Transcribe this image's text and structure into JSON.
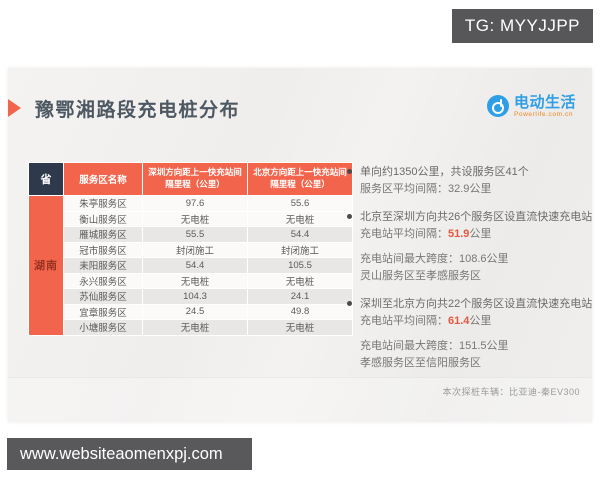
{
  "watermarks": {
    "top_label": "TG: MYYJJPP",
    "bottom_label": "www.websiteaomenxpj.com"
  },
  "header": {
    "title": "豫鄂湘路段充电桩分布"
  },
  "logo": {
    "brand": "电动生活",
    "site": "Powerlife.com.cn"
  },
  "chart_data": {
    "type": "table",
    "title": "豫鄂湘路段充电桩分布",
    "province": "湖南",
    "columns": [
      "省",
      "服务区名称",
      "深圳方向距上一快充站间隔里程（公里）",
      "北京方向距上一快充站间隔里程（公里）"
    ],
    "rows": [
      {
        "name": "朱亭服务区",
        "shenzhen": "97.6",
        "beijing": "55.6"
      },
      {
        "name": "衡山服务区",
        "shenzhen": "无电桩",
        "beijing": "无电桩"
      },
      {
        "name": "雁城服务区",
        "shenzhen": "55.5",
        "beijing": "54.4"
      },
      {
        "name": "冠市服务区",
        "shenzhen": "封闭施工",
        "beijing": "封闭施工"
      },
      {
        "name": "耒阳服务区",
        "shenzhen": "54.4",
        "beijing": "105.5"
      },
      {
        "name": "永兴服务区",
        "shenzhen": "无电桩",
        "beijing": "无电桩"
      },
      {
        "name": "苏仙服务区",
        "shenzhen": "104.3",
        "beijing": "24.1"
      },
      {
        "name": "宜章服务区",
        "shenzhen": "24.5",
        "beijing": "49.8"
      },
      {
        "name": "小塘服务区",
        "shenzhen": "无电桩",
        "beijing": "无电桩"
      }
    ]
  },
  "notes": {
    "b1_l1": "单向约1350公里，共设服务区41个",
    "b1_l2": "服务区平均间隔：32.9公里",
    "b2_l1": "北京至深圳方向共26个服务区设直流快速充电站",
    "b2_l2_prefix": "充电站平均间隔：",
    "b2_l2_value": "51.9",
    "b2_l2_suffix": "公里",
    "b2_l3": "充电站间最大跨度：108.6公里",
    "b2_l4": "灵山服务区至孝感服务区",
    "b3_l1": "深圳至北京方向共22个服务区设直流快速充电站",
    "b3_l2_prefix": "充电站平均间隔：",
    "b3_l2_value": "61.4",
    "b3_l2_suffix": "公里",
    "b3_l3": "充电站间最大跨度：151.5公里",
    "b3_l4": "孝感服务区至信阳服务区"
  },
  "footnote": "本次探桩车辆：比亚迪-秦EV300",
  "colors": {
    "accent_orange": "#f2654c",
    "header_navy": "#2e3a4c",
    "brand_blue": "#2e9fe6",
    "highlight_red": "#e8573f",
    "watermark_gray": "#58585b"
  }
}
